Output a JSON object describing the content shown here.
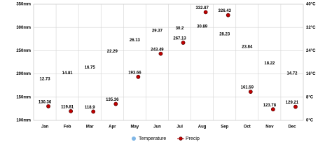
{
  "chart_data": {
    "type": "climate",
    "categories": [
      "Jan",
      "Feb",
      "Mar",
      "Apr",
      "May",
      "Jun",
      "Jul",
      "Aug",
      "Sep",
      "Oct",
      "Nov",
      "Dec"
    ],
    "series": [
      {
        "name": "Temperature",
        "color": "#7fb6e6",
        "axis": "y2",
        "values": [
          12.73,
          14.81,
          16.75,
          22.29,
          26.13,
          29.37,
          30.2,
          30.89,
          28.23,
          23.84,
          18.22,
          14.72
        ]
      },
      {
        "name": "Precip",
        "color": "#c00000",
        "values": [
          130.36,
          119.81,
          118.9,
          135.36,
          193.66,
          243.49,
          267.13,
          332.87,
          326.43,
          161.59,
          123.78,
          129.21
        ]
      }
    ],
    "ylim": [
      100,
      350
    ],
    "yticks": [
      {
        "value": 100,
        "label": "100mm"
      },
      {
        "value": 150,
        "label": "150mm"
      },
      {
        "value": 200,
        "label": "200mm"
      },
      {
        "value": 250,
        "label": "250mm"
      },
      {
        "value": 300,
        "label": "300mm"
      },
      {
        "value": 350,
        "label": "350mm"
      }
    ],
    "y2lim": [
      0,
      40
    ],
    "y2ticks": [
      {
        "value": 0,
        "label": "0°C"
      },
      {
        "value": 8,
        "label": "8°C"
      },
      {
        "value": 16,
        "label": "16°C"
      },
      {
        "value": 24,
        "label": "24°C"
      },
      {
        "value": 32,
        "label": "32°C"
      },
      {
        "value": 40,
        "label": "40°C"
      }
    ],
    "grid": true
  }
}
